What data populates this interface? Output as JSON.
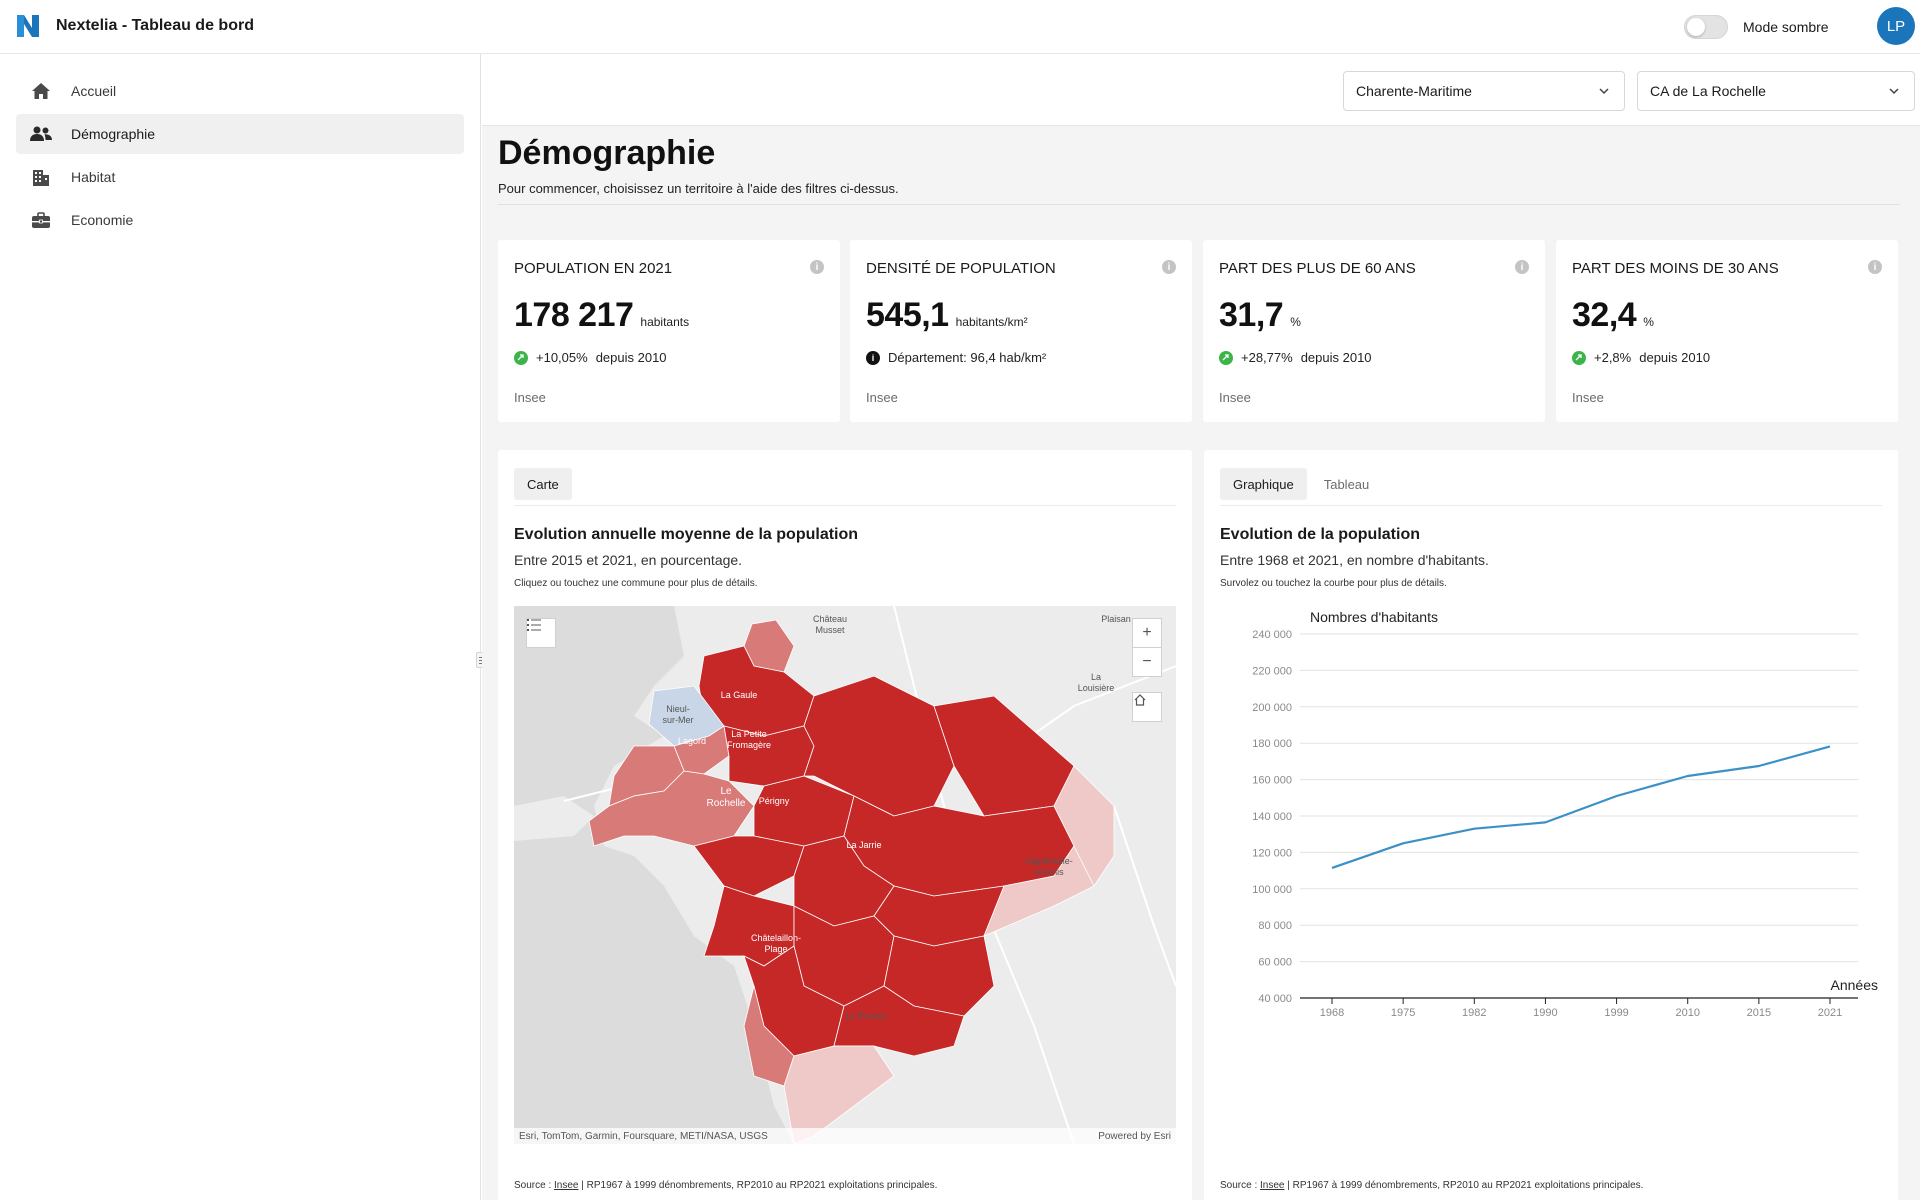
{
  "app": {
    "title": "Nextelia - Tableau de bord",
    "dark_mode_label": "Mode sombre",
    "avatar_initials": "LP",
    "accent": "#1b75bb"
  },
  "sidebar": {
    "items": [
      {
        "label": "Accueil",
        "icon": "home-icon"
      },
      {
        "label": "Démographie",
        "icon": "users-icon",
        "active": true
      },
      {
        "label": "Habitat",
        "icon": "building-icon"
      },
      {
        "label": "Economie",
        "icon": "briefcase-icon"
      }
    ]
  },
  "filters": {
    "department": "Charente-Maritime",
    "epci": "CA de La Rochelle"
  },
  "page": {
    "title": "Démographie",
    "subtitle": "Pour commencer, choisissez un territoire à l'aide des filtres ci-dessus."
  },
  "kpis": [
    {
      "title": "POPULATION EN 2021",
      "value": "178 217",
      "unit": "habitants",
      "change": "+10,05%",
      "since": "depuis 2010",
      "change_type": "up",
      "source": "Insee"
    },
    {
      "title": "DENSITÉ DE POPULATION",
      "value": "545,1",
      "unit": "habitants/km²",
      "change": "Département: 96,4 hab/km²",
      "since": "",
      "change_type": "info",
      "source": "Insee"
    },
    {
      "title": "PART DES PLUS DE 60 ANS",
      "value": "31,7",
      "unit": "%",
      "change": "+28,77%",
      "since": "depuis 2010",
      "change_type": "up",
      "source": "Insee"
    },
    {
      "title": "PART DES MOINS DE 30 ANS",
      "value": "32,4",
      "unit": "%",
      "change": "+2,8%",
      "since": "depuis 2010",
      "change_type": "up",
      "source": "Insee"
    }
  ],
  "map_card": {
    "tab": "Carte",
    "title": "Evolution annuelle moyenne de la population",
    "subtitle": "Entre 2015 et 2021, en pourcentage.",
    "hint": "Cliquez ou touchez une commune pour plus de détails.",
    "attribution": "Esri, TomTom, Garmin, Foursquare, METI/NASA, USGS",
    "powered": "Powered by Esri",
    "source_prefix": "Source : ",
    "source_link": "Insee",
    "source_rest": " | RP1967 à 1999 dénombrements, RP2010 au RP2021 exploitations principales.",
    "places": {
      "chateau": "Château",
      "musset": "Musset",
      "plaisance": "Plaisan",
      "la": "La",
      "louisiere": "Louisière",
      "nieul": "Nieul-",
      "surmer": "sur-Mer",
      "lagord": "Lagord",
      "lapetite": "La Petite",
      "fromagere": "Fromagère",
      "le": "Le",
      "rochelle": "Rochelle",
      "perigny": "Périgny",
      "lajarrie": "La Jarrie",
      "aigrefeuille": "Aigrefeuille-",
      "daunis": "d'Aunis",
      "chatelaillon": "Châtelaillon-",
      "plage": "Plage",
      "lerocher": "Le Rocher",
      "lagord2": "La Gaule",
      "colors": {
        "strong": "#c62828",
        "medium": "#d87a78",
        "light": "#eec9c7",
        "negative": "#c9d6e8"
      }
    }
  },
  "chart_card": {
    "tabs": [
      "Graphique",
      "Tableau"
    ],
    "title": "Evolution de la population",
    "subtitle": "Entre 1968 et 2021, en nombre d'habitants.",
    "hint": "Survolez ou touchez la courbe pour plus de détails.",
    "source_prefix": "Source : ",
    "source_link": "Insee",
    "source_rest": " | RP1967 à 1999 dénombrements, RP2010 au RP2021 exploitations principales."
  },
  "chart_data": {
    "type": "line",
    "title": "",
    "ylabel": "Nombres d'habitants",
    "xlabel": "Années",
    "x": [
      "1968",
      "1975",
      "1982",
      "1990",
      "1999",
      "2010",
      "2015",
      "2021"
    ],
    "series": [
      {
        "values": [
          111500,
          125000,
          133000,
          136500,
          151000,
          162000,
          167500,
          178217
        ]
      }
    ],
    "ylim": [
      40000,
      240000
    ],
    "yticks": [
      "40 000",
      "60 000",
      "80 000",
      "100 000",
      "120 000",
      "140 000",
      "160 000",
      "180 000",
      "200 000",
      "220 000",
      "240 000"
    ],
    "ytick_values": [
      40000,
      60000,
      80000,
      100000,
      120000,
      140000,
      160000,
      180000,
      200000,
      220000,
      240000
    ],
    "grid": true,
    "color": "#3b91c7"
  }
}
